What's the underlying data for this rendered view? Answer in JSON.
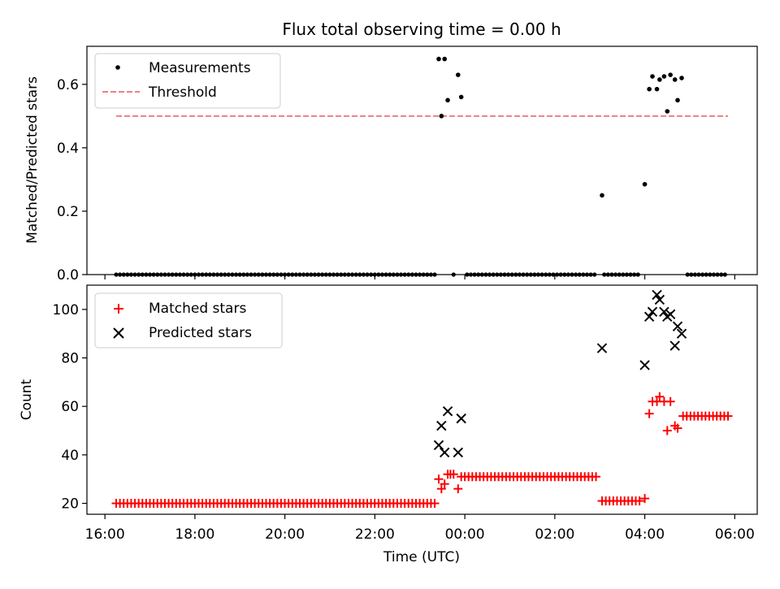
{
  "chart_data": [
    {
      "type": "scatter",
      "title": "Flux total observing time = 0.00 h",
      "xlabel": "",
      "ylabel": "Matched/Predicted stars",
      "ylim": [
        0,
        0.72
      ],
      "yticks": [
        0.0,
        0.2,
        0.4,
        0.6
      ],
      "ytick_labels": [
        "0.0",
        "0.2",
        "0.4",
        "0.6"
      ],
      "xlim_hours": [
        15.6,
        30.5
      ],
      "x_time_utc_hours_since_midnight_day1": true,
      "series": [
        {
          "name": "Measurements",
          "style": "dot",
          "color": "#000000",
          "points": [
            [
              23.42,
              0.68
            ],
            [
              23.48,
              0.5
            ],
            [
              23.55,
              0.68
            ],
            [
              23.62,
              0.55
            ],
            [
              23.85,
              0.63
            ],
            [
              23.92,
              0.56
            ],
            [
              27.05,
              0.25
            ],
            [
              28.0,
              0.285
            ],
            [
              28.1,
              0.585
            ],
            [
              28.17,
              0.625
            ],
            [
              28.27,
              0.585
            ],
            [
              28.33,
              0.615
            ],
            [
              28.43,
              0.625
            ],
            [
              28.5,
              0.515
            ],
            [
              28.57,
              0.63
            ],
            [
              28.67,
              0.615
            ],
            [
              28.73,
              0.55
            ],
            [
              28.82,
              0.62
            ]
          ],
          "zero_runs": [
            [
              16.25,
              23.35,
              0.0833
            ],
            [
              23.75,
              23.83,
              0.0833
            ],
            [
              24.05,
              26.95,
              0.0833
            ],
            [
              27.1,
              27.9,
              0.0833
            ],
            [
              28.95,
              29.85,
              0.0833
            ]
          ]
        },
        {
          "name": "Threshold",
          "style": "dashed-line",
          "color": "#f08080",
          "points": [
            [
              16.25,
              0.5
            ],
            [
              29.85,
              0.5
            ]
          ]
        }
      ],
      "legend": {
        "placement": "upper-left"
      }
    },
    {
      "type": "scatter",
      "title": "",
      "xlabel": "Time (UTC)",
      "ylabel": "Count",
      "ylim": [
        15.5,
        110
      ],
      "yticks": [
        20,
        40,
        60,
        80,
        100
      ],
      "ytick_labels": [
        "20",
        "40",
        "60",
        "80",
        "100"
      ],
      "xticks_hours": [
        16,
        18,
        20,
        22,
        24,
        26,
        28,
        30
      ],
      "xtick_labels": [
        "16:00",
        "18:00",
        "20:00",
        "22:00",
        "00:00",
        "02:00",
        "04:00",
        "06:00"
      ],
      "xlim_hours": [
        15.6,
        30.5
      ],
      "series": [
        {
          "name": "Matched stars",
          "style": "plus",
          "color": "#ff0000",
          "points": [
            [
              23.42,
              30
            ],
            [
              23.48,
              26
            ],
            [
              23.55,
              28
            ],
            [
              23.62,
              32
            ],
            [
              23.68,
              32
            ],
            [
              23.75,
              32
            ],
            [
              23.85,
              26
            ],
            [
              23.92,
              31
            ],
            [
              28.0,
              22
            ],
            [
              28.1,
              57
            ],
            [
              28.17,
              62
            ],
            [
              28.27,
              62
            ],
            [
              28.33,
              64
            ],
            [
              28.43,
              62
            ],
            [
              28.5,
              50
            ],
            [
              28.57,
              62
            ],
            [
              28.67,
              52
            ],
            [
              28.73,
              51
            ]
          ],
          "runs": [
            [
              16.25,
              23.35,
              0.0833,
              20
            ],
            [
              24.0,
              26.95,
              0.0833,
              31
            ],
            [
              27.05,
              27.9,
              0.0833,
              21
            ],
            [
              28.85,
              29.85,
              0.0833,
              56
            ]
          ]
        },
        {
          "name": "Predicted stars",
          "style": "x",
          "color": "#000000",
          "points": [
            [
              23.42,
              44
            ],
            [
              23.48,
              52
            ],
            [
              23.55,
              41
            ],
            [
              23.62,
              58
            ],
            [
              23.85,
              41
            ],
            [
              23.92,
              55
            ],
            [
              27.05,
              84
            ],
            [
              28.0,
              77
            ],
            [
              28.1,
              97
            ],
            [
              28.17,
              99
            ],
            [
              28.27,
              106
            ],
            [
              28.33,
              104
            ],
            [
              28.43,
              99
            ],
            [
              28.5,
              97
            ],
            [
              28.57,
              98
            ],
            [
              28.67,
              85
            ],
            [
              28.73,
              93
            ],
            [
              28.82,
              90
            ]
          ]
        }
      ],
      "legend": {
        "placement": "upper-left"
      }
    }
  ]
}
